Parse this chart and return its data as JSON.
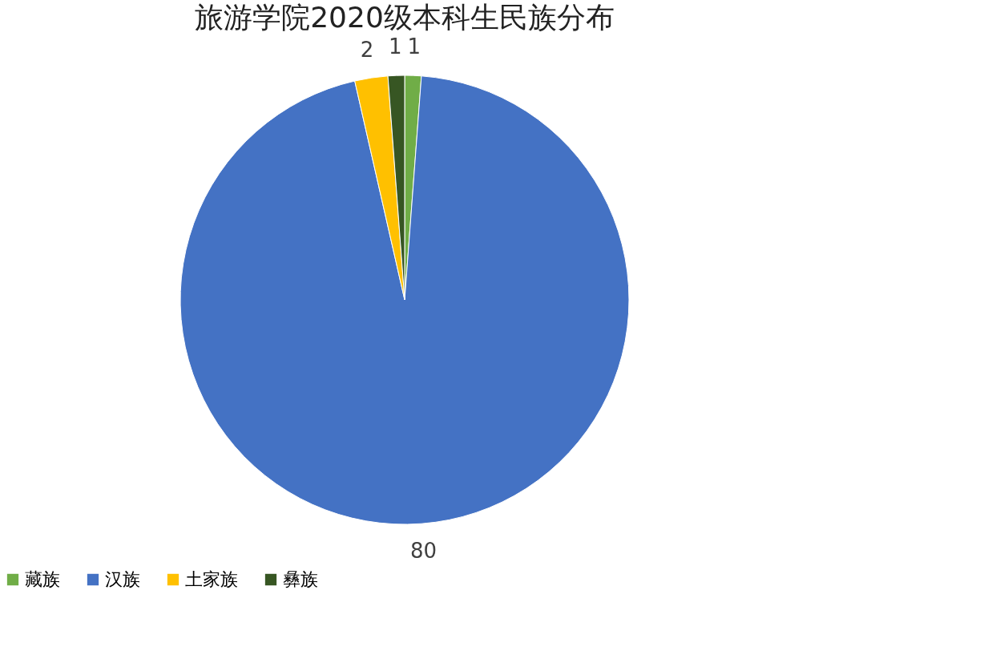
{
  "chart_data": {
    "type": "pie",
    "title": "旅游学院2020级本科生民族分布",
    "categories": [
      "藏族",
      "汉族",
      "土家族",
      "彝族"
    ],
    "values": [
      1,
      80,
      2,
      1
    ],
    "colors": [
      "#70ad47",
      "#4472c4",
      "#ffc000",
      "#375623"
    ],
    "data_labels": true,
    "legend": "bottom"
  }
}
